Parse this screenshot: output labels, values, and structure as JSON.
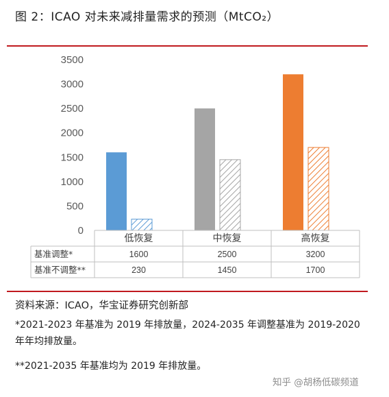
{
  "title": "图 2：ICAO 对未来减排量需求的预测（MtCO₂）",
  "chart_data": {
    "type": "bar",
    "categories": [
      "低恢复",
      "中恢复",
      "高恢复"
    ],
    "series": [
      {
        "name": "基准调整*",
        "values": [
          1600,
          2500,
          3200
        ]
      },
      {
        "name": "基准不调整**",
        "values": [
          230,
          1450,
          1700
        ]
      }
    ],
    "table": {
      "row_labels": [
        "基准调整*",
        "基准不调整**"
      ],
      "rows": [
        [
          "1600",
          "2500",
          "3200"
        ],
        [
          "230",
          "1450",
          "1700"
        ]
      ]
    },
    "yticks": [
      "0",
      "500",
      "1000",
      "1500",
      "2000",
      "2500",
      "3000",
      "3500"
    ],
    "ylim": [
      0,
      3500
    ],
    "colors": {
      "low": "#5b9bd5",
      "mid": "#a5a5a5",
      "high": "#ed7d31"
    },
    "pattern": "hatched for 基准不调整"
  },
  "source": "资料来源：ICAO，华宝证券研究创新部",
  "notes": [
    "*2021-2023 年基准为 2019 年排放量，2024-2035 年调整基准为 2019-2020 年年均排放量。",
    "**2021-2035 年基准均为 2019 年排放量。"
  ],
  "watermark": "知乎 @胡杨低碳频道",
  "accent_color": "#c0191e"
}
